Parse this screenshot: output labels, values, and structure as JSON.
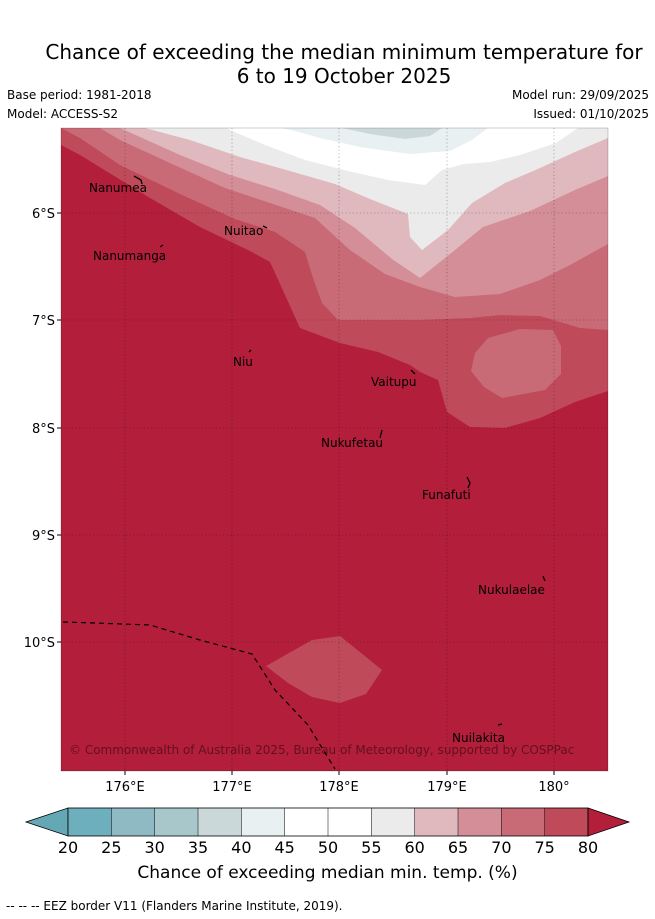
{
  "title": {
    "line1": "Chance of exceeding the median minimum temperature for",
    "line2": "6 to 19 October 2025"
  },
  "meta": {
    "base_period": "Base period: 1981-2018",
    "model": "Model: ACCESS-S2",
    "model_run": "Model run: 29/09/2025",
    "issued": "Issued: 01/10/2025"
  },
  "islands": [
    {
      "name": "Nanumea"
    },
    {
      "name": "Nuitao"
    },
    {
      "name": "Nanumanga"
    },
    {
      "name": "Niu"
    },
    {
      "name": "Vaitupu"
    },
    {
      "name": "Nukufetau"
    },
    {
      "name": "Funafuti"
    },
    {
      "name": "Nukulaelae"
    },
    {
      "name": "Nuilakita"
    }
  ],
  "axes": {
    "lon_labels": [
      "176°E",
      "177°E",
      "178°E",
      "179°E",
      "180°"
    ],
    "lat_labels": [
      "6°S",
      "7°S",
      "8°S",
      "9°S",
      "10°S"
    ]
  },
  "copyright": "© Commonwealth of Australia 2025, Bureau of Meteorology, supported by COSPPac",
  "colorbar": {
    "ticks": [
      "20",
      "25",
      "30",
      "35",
      "40",
      "45",
      "50",
      "55",
      "60",
      "65",
      "70",
      "75",
      "80"
    ],
    "colors": [
      "#64a8b6",
      "#6eafbd",
      "#8fbac3",
      "#a8c7cb",
      "#cbd8da",
      "#e9f0f2",
      "#ffffff",
      "#ffffff",
      "#ecebec",
      "#e0b9bf",
      "#d48e98",
      "#c96b77",
      "#bf4a59",
      "#b31e3a"
    ],
    "label": "Chance of exceeding median min. temp. (%)"
  },
  "legend": {
    "eez": "--  --  -- EEZ border V11 (Flanders Marine Institute, 2019)."
  }
}
